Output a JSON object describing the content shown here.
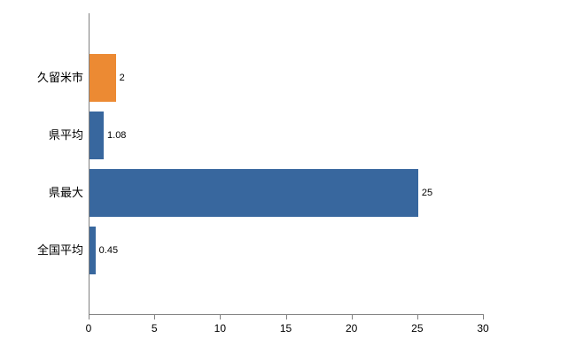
{
  "chart_data": {
    "type": "bar",
    "orientation": "horizontal",
    "title": "",
    "categories": [
      "久留米市",
      "県平均",
      "県最大",
      "全国平均"
    ],
    "values": [
      2,
      1.08,
      25,
      0.45
    ],
    "data_labels": [
      "2",
      "1.08",
      "25",
      "0.45"
    ],
    "bar_colors": [
      "#EC8A33",
      "#38679E",
      "#38679E",
      "#38679E"
    ],
    "xlim": [
      0,
      30
    ],
    "x_ticks": [
      "0",
      "5",
      "10",
      "15",
      "20",
      "25",
      "30"
    ],
    "grid": false,
    "legend": "none",
    "background_color": "#FFFFFF",
    "axis_color": "#808080",
    "text_color": "#000000"
  }
}
